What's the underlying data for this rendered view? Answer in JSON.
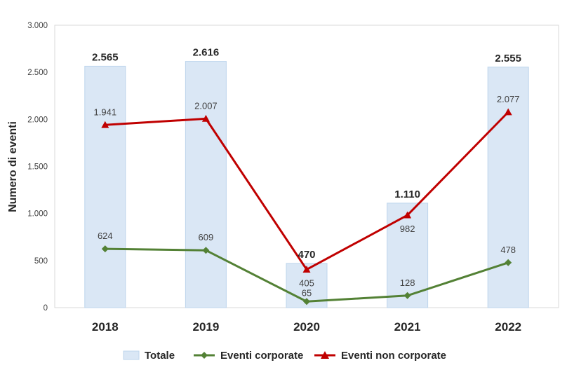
{
  "chart_data": {
    "type": "bar",
    "categories": [
      "2018",
      "2019",
      "2020",
      "2021",
      "2022"
    ],
    "ylabel": "Numero di eventi",
    "xlabel": "",
    "ylim": [
      0,
      3000
    ],
    "yticks": [
      0,
      500,
      1000,
      1500,
      2000,
      2500,
      3000
    ],
    "ytick_labels": [
      "0",
      "500",
      "1.000",
      "1.500",
      "2.000",
      "2.500",
      "3.000"
    ],
    "grid": false,
    "legend_position": "bottom",
    "series": [
      {
        "name": "Totale",
        "type": "bar",
        "values": [
          2565,
          2616,
          470,
          1110,
          2555
        ],
        "labels": [
          "2.565",
          "2.616",
          "470",
          "1.110",
          "2.555"
        ],
        "color": "#dae7f5",
        "border_color": "#bdd4ec"
      },
      {
        "name": "Eventi corporate",
        "type": "line",
        "marker": "diamond",
        "values": [
          624,
          609,
          65,
          128,
          478
        ],
        "labels": [
          "624",
          "609",
          "65",
          "128",
          "478"
        ],
        "color": "#538135"
      },
      {
        "name": "Eventi non corporate",
        "type": "line",
        "marker": "triangle",
        "values": [
          1941,
          2007,
          405,
          982,
          2077
        ],
        "labels": [
          "1.941",
          "2.007",
          "405",
          "982",
          "2.077"
        ],
        "color": "#c00000"
      }
    ]
  }
}
